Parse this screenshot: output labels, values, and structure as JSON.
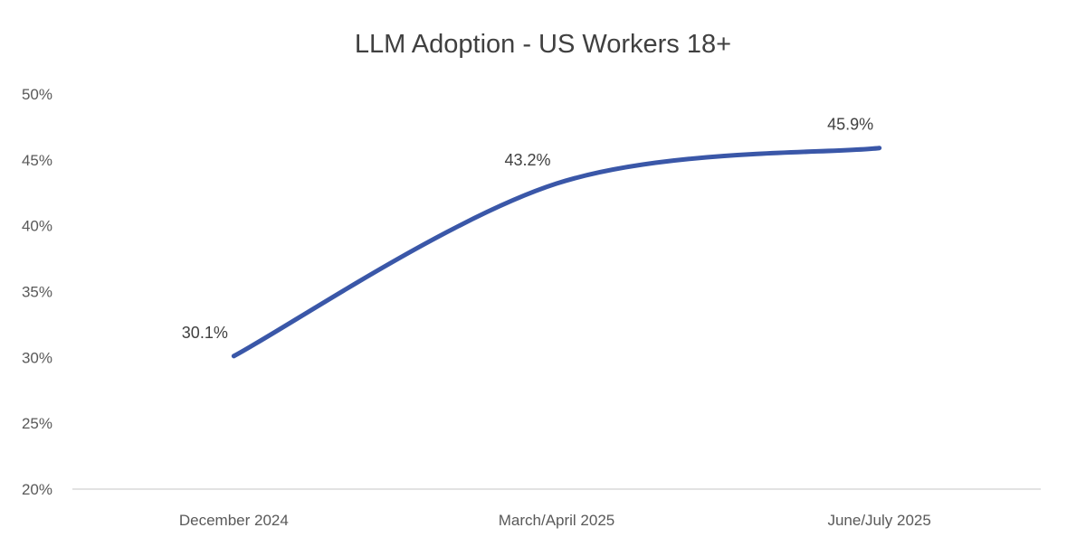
{
  "chart_data": {
    "type": "line",
    "title": "LLM Adoption - US Workers 18+",
    "xlabel": "",
    "ylabel": "",
    "categories": [
      "December 2024",
      "March/April 2025",
      "June/July 2025"
    ],
    "series": [
      {
        "name": "LLM Adoption",
        "values": [
          30.1,
          43.2,
          45.9
        ],
        "labels": [
          "30.1%",
          "43.2%",
          "45.9%"
        ]
      }
    ],
    "ylim": [
      20,
      50
    ],
    "yticks": [
      20,
      25,
      30,
      35,
      40,
      45,
      50
    ],
    "ytick_labels": [
      "20%",
      "25%",
      "30%",
      "35%",
      "40%",
      "45%",
      "50%"
    ],
    "grid": false,
    "smooth": true,
    "line_color": "#3a57a8"
  }
}
